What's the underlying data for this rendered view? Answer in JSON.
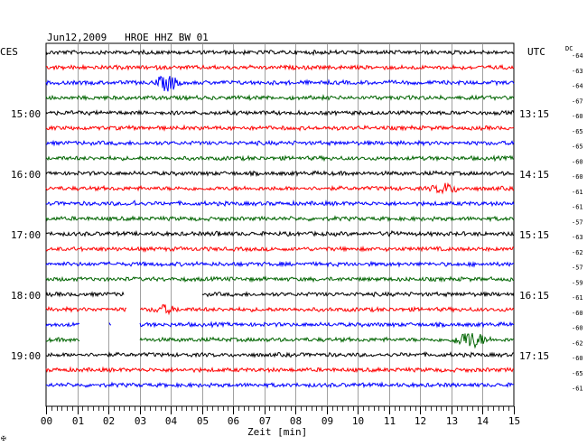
{
  "chart_data": {
    "type": "line",
    "title": "Jun12,2009   HROE HHZ BW 01",
    "left_timezone": "CES",
    "right_timezone": "UTC",
    "dc_label": "DC",
    "xlabel": "Zeit [min]",
    "x_range": [
      0,
      15
    ],
    "x_ticks": [
      "00",
      "01",
      "02",
      "03",
      "04",
      "05",
      "06",
      "07",
      "08",
      "09",
      "10",
      "11",
      "12",
      "13",
      "14",
      "15"
    ],
    "row_colors": [
      "#000000",
      "#ff0000",
      "#0000ff",
      "#006400"
    ],
    "left_hour_labels": [
      {
        "row": 4,
        "text": "15:00"
      },
      {
        "row": 8,
        "text": "16:00"
      },
      {
        "row": 12,
        "text": "17:00"
      },
      {
        "row": 16,
        "text": "18:00"
      },
      {
        "row": 20,
        "text": "19:00"
      }
    ],
    "right_hour_labels": [
      {
        "row": 4,
        "text": "13:15"
      },
      {
        "row": 8,
        "text": "14:15"
      },
      {
        "row": 12,
        "text": "15:15"
      },
      {
        "row": 16,
        "text": "16:15"
      },
      {
        "row": 20,
        "text": "17:15"
      }
    ],
    "dc_offsets": [
      "64",
      "63",
      "64",
      "67",
      "60",
      "65",
      "65",
      "60",
      "60",
      "61",
      "61",
      "57",
      "63",
      "62",
      "57",
      "59",
      "61",
      "60",
      "60",
      "62",
      "60",
      "65",
      "61"
    ],
    "events": [
      {
        "row": 2,
        "minute": 3.9,
        "amplitude": 9,
        "width_min": 0.5
      },
      {
        "row": 9,
        "minute": 12.8,
        "amplitude": 5,
        "width_min": 0.6
      },
      {
        "row": 12,
        "minute": 11.1,
        "amplitude": 5,
        "width_min": 0.15
      },
      {
        "row": 12,
        "minute": 5.5,
        "amplitude": 3,
        "width_min": 0.15
      },
      {
        "row": 17,
        "minute": 3.8,
        "amplitude": 4,
        "width_min": 0.5
      },
      {
        "row": 19,
        "minute": 13.6,
        "amplitude": 9,
        "width_min": 0.7
      },
      {
        "row": 10,
        "minute": 2.8,
        "amplitude": 3,
        "width_min": 0.15
      }
    ],
    "gaps": [
      {
        "row": 16,
        "from_min": 2.5,
        "to_min": 4.0
      },
      {
        "row": 16,
        "from_min": 4.0,
        "to_min": 5.0
      },
      {
        "row": 17,
        "from_min": 2.6,
        "to_min": 3.0
      },
      {
        "row": 18,
        "from_min": 1.1,
        "to_min": 2.0
      },
      {
        "row": 18,
        "from_min": 2.1,
        "to_min": 3.0
      },
      {
        "row": 19,
        "from_min": 1.1,
        "to_min": 3.0
      }
    ]
  },
  "corner_mark": "✠"
}
